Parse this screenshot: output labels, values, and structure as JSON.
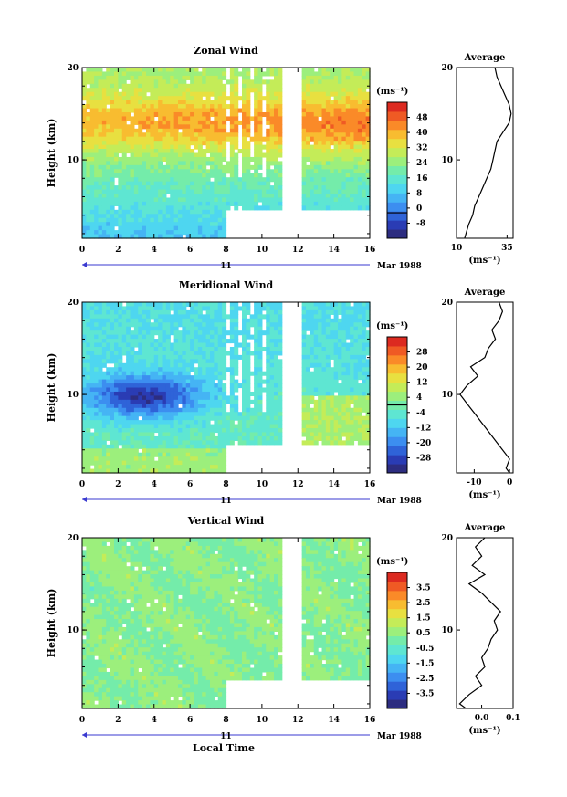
{
  "figure": {
    "date_label": "Mar 1988",
    "day_label": "11",
    "local_time_label": "Local Time",
    "colors": {
      "palette": [
        "#2d2d80",
        "#2a3cb4",
        "#2f63d8",
        "#3c8ef0",
        "#45b4f4",
        "#4ed6f0",
        "#5ee6d2",
        "#74ecaa",
        "#9cef7c",
        "#c4ec58",
        "#e8e040",
        "#f8bc30",
        "#fa8a28",
        "#ef5a24",
        "#dc2a20"
      ]
    }
  },
  "chart_data": [
    {
      "id": "zonal",
      "type": "heatmap",
      "title": "Zonal Wind",
      "ylabel": "Height (km)",
      "unit": "(ms⁻¹)",
      "x_ticks": [
        "0",
        "2",
        "4",
        "6",
        "8",
        "10",
        "12",
        "14",
        "16"
      ],
      "xlim": [
        0,
        16
      ],
      "y_ticks": [
        "10",
        "20"
      ],
      "ylim": [
        1.5,
        20
      ],
      "gaps": [
        [
          11.0,
          12.2
        ]
      ],
      "blank_low": {
        "from_x": 8,
        "below_y": 4.5
      },
      "colorbar": {
        "labels": [
          "-8",
          "0",
          "8",
          "16",
          "24",
          "32",
          "40",
          "48"
        ],
        "min": -12,
        "max": 52,
        "zero_line": 0
      },
      "profile": {
        "title": "Average",
        "xlabel": "(ms⁻¹)",
        "x_ticks": [
          "10",
          "35"
        ],
        "xlim": [
          10,
          38
        ],
        "y_ticks": [
          "10",
          "20"
        ],
        "points": [
          [
            14,
            1.5
          ],
          [
            16,
            3
          ],
          [
            18,
            4
          ],
          [
            19,
            5
          ],
          [
            21,
            6
          ],
          [
            23,
            7
          ],
          [
            25,
            8
          ],
          [
            27,
            9
          ],
          [
            28,
            10
          ],
          [
            29,
            11
          ],
          [
            30,
            12
          ],
          [
            33,
            13
          ],
          [
            36,
            14
          ],
          [
            37,
            15
          ],
          [
            36,
            16
          ],
          [
            34,
            17
          ],
          [
            32,
            18
          ],
          [
            30,
            19
          ],
          [
            29,
            20
          ]
        ]
      }
    },
    {
      "id": "meridional",
      "type": "heatmap",
      "title": "Meridional Wind",
      "ylabel": "Height (km)",
      "unit": "(ms⁻¹)",
      "x_ticks": [
        "0",
        "2",
        "4",
        "6",
        "8",
        "10",
        "12",
        "14",
        "16"
      ],
      "xlim": [
        0,
        16
      ],
      "y_ticks": [
        "10",
        "20"
      ],
      "ylim": [
        1.5,
        20
      ],
      "gaps": [
        [
          11.0,
          12.2
        ]
      ],
      "blank_low": {
        "from_x": 8,
        "below_y": 4.5
      },
      "colorbar": {
        "labels": [
          "-28",
          "-20",
          "-12",
          "-4",
          "4",
          "12",
          "20",
          "28"
        ],
        "min": -30,
        "max": 30,
        "zero_line": 0
      },
      "profile": {
        "title": "Average",
        "xlabel": "(ms⁻¹)",
        "x_ticks": [
          "-10",
          "0"
        ],
        "xlim": [
          -15,
          1
        ],
        "y_ticks": [
          "10",
          "20"
        ],
        "points": [
          [
            0,
            1.5
          ],
          [
            -1,
            2
          ],
          [
            0,
            3
          ],
          [
            -2,
            4
          ],
          [
            -4,
            5
          ],
          [
            -6,
            6
          ],
          [
            -8,
            7
          ],
          [
            -10,
            8
          ],
          [
            -12,
            9
          ],
          [
            -14,
            10
          ],
          [
            -12,
            11
          ],
          [
            -9,
            12
          ],
          [
            -11,
            13
          ],
          [
            -7,
            14
          ],
          [
            -6,
            15
          ],
          [
            -4,
            16
          ],
          [
            -5,
            17
          ],
          [
            -3,
            18
          ],
          [
            -2,
            19
          ],
          [
            -3,
            20
          ]
        ]
      }
    },
    {
      "id": "vertical",
      "type": "heatmap",
      "title": "Vertical Wind",
      "ylabel": "Height (km)",
      "unit": "(ms⁻¹)",
      "x_ticks": [
        "0",
        "2",
        "4",
        "6",
        "8",
        "10",
        "12",
        "14",
        "16"
      ],
      "xlim": [
        0,
        16
      ],
      "y_ticks": [
        "10",
        "20"
      ],
      "ylim": [
        1.5,
        20
      ],
      "gaps": [
        [
          11.0,
          12.2
        ]
      ],
      "blank_low": {
        "from_x": 8,
        "below_y": 4.5
      },
      "colorbar": {
        "labels": [
          "-3.5",
          "-2.5",
          "-1.5",
          "-0.5",
          "0.5",
          "1.5",
          "2.5",
          "3.5"
        ],
        "min": -4,
        "max": 4,
        "zero_line": null
      },
      "profile": {
        "title": "Average",
        "xlabel": "(ms⁻¹)",
        "x_ticks": [
          "0.0",
          "0.1"
        ],
        "xlim": [
          -0.08,
          0.1
        ],
        "y_ticks": [
          "10",
          "20"
        ],
        "points": [
          [
            -0.05,
            1.5
          ],
          [
            -0.07,
            2
          ],
          [
            -0.04,
            3
          ],
          [
            0.0,
            4
          ],
          [
            -0.02,
            5
          ],
          [
            0.01,
            6
          ],
          [
            0.0,
            7
          ],
          [
            0.02,
            8
          ],
          [
            0.03,
            9
          ],
          [
            0.05,
            10
          ],
          [
            0.04,
            11
          ],
          [
            0.06,
            12
          ],
          [
            0.03,
            13
          ],
          [
            0.0,
            14
          ],
          [
            -0.04,
            15
          ],
          [
            0.01,
            16
          ],
          [
            -0.03,
            17
          ],
          [
            0.0,
            18
          ],
          [
            -0.02,
            19
          ],
          [
            0.01,
            20
          ]
        ]
      }
    }
  ]
}
